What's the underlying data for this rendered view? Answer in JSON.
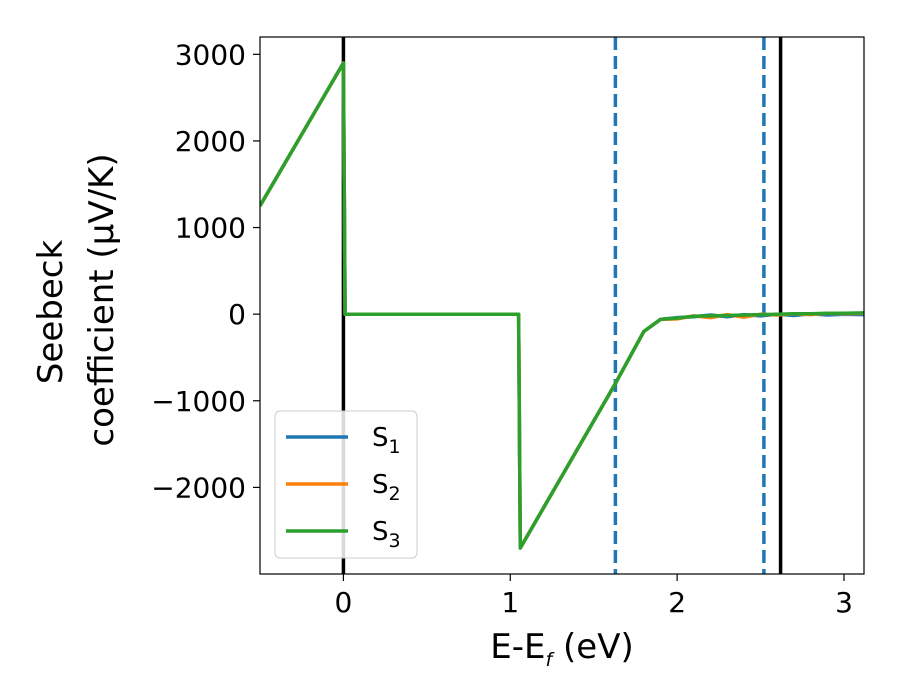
{
  "chart_data": {
    "type": "line",
    "xlabel": "E-E",
    "xlabel_sub": "f",
    "xlabel_unit": " (eV)",
    "ylabel_line1": "Seebeck",
    "ylabel_line2": "coefficient  (μV/K)",
    "xlim": [
      -0.5,
      3.12
    ],
    "ylim": [
      -3000,
      3200
    ],
    "xticks": [
      0,
      1,
      2,
      3
    ],
    "xtick_labels": [
      "0",
      "1",
      "2",
      "3"
    ],
    "yticks": [
      3000,
      2000,
      1000,
      0,
      -1000,
      -2000
    ],
    "ytick_labels": [
      "3000",
      "2000",
      "1000",
      "0",
      "−1000",
      "−2000"
    ],
    "grid": false,
    "legend_position": "lower-left",
    "vertical_lines": [
      {
        "x": 0.0,
        "style": "solid",
        "color": "#000000"
      },
      {
        "x": 1.63,
        "style": "dashed",
        "color": "#1f77b4"
      },
      {
        "x": 2.52,
        "style": "dashed",
        "color": "#1f77b4"
      },
      {
        "x": 2.62,
        "style": "solid",
        "color": "#000000"
      }
    ],
    "series": [
      {
        "name": "S",
        "sub": "1",
        "color": "#1f77b4",
        "x": [
          -0.5,
          0.0,
          0.01,
          1.05,
          1.06,
          1.63,
          1.8,
          1.9,
          2.0,
          2.1,
          2.2,
          2.3,
          2.4,
          2.5,
          2.6,
          2.7,
          2.8,
          2.9,
          3.0,
          3.12
        ],
        "y": [
          1250,
          2900,
          0,
          0,
          -2700,
          -800,
          -200,
          -60,
          -40,
          -30,
          -10,
          -30,
          -5,
          -20,
          0,
          -15,
          5,
          -10,
          0,
          -5
        ]
      },
      {
        "name": "S",
        "sub": "2",
        "color": "#ff7f0e",
        "x": [
          -0.5,
          0.0,
          0.01,
          1.05,
          1.06,
          1.63,
          1.8,
          1.9,
          2.0,
          2.1,
          2.2,
          2.3,
          2.4,
          2.5,
          2.6,
          2.7,
          2.8,
          2.9,
          3.0,
          3.12
        ],
        "y": [
          1250,
          2900,
          0,
          0,
          -2700,
          -800,
          -200,
          -60,
          -55,
          -20,
          -40,
          -5,
          -35,
          0,
          -10,
          5,
          -5,
          10,
          5,
          10
        ]
      },
      {
        "name": "S",
        "sub": "3",
        "color": "#2ca02c",
        "x": [
          -0.5,
          0.0,
          0.01,
          1.05,
          1.06,
          1.63,
          1.8,
          1.9,
          2.0,
          2.1,
          2.2,
          2.3,
          2.4,
          2.5,
          2.6,
          2.7,
          2.8,
          2.9,
          3.0,
          3.12
        ],
        "y": [
          1250,
          2900,
          0,
          0,
          -2700,
          -800,
          -200,
          -60,
          -45,
          -25,
          -20,
          -15,
          -10,
          -5,
          0,
          5,
          5,
          10,
          10,
          15
        ]
      }
    ]
  }
}
